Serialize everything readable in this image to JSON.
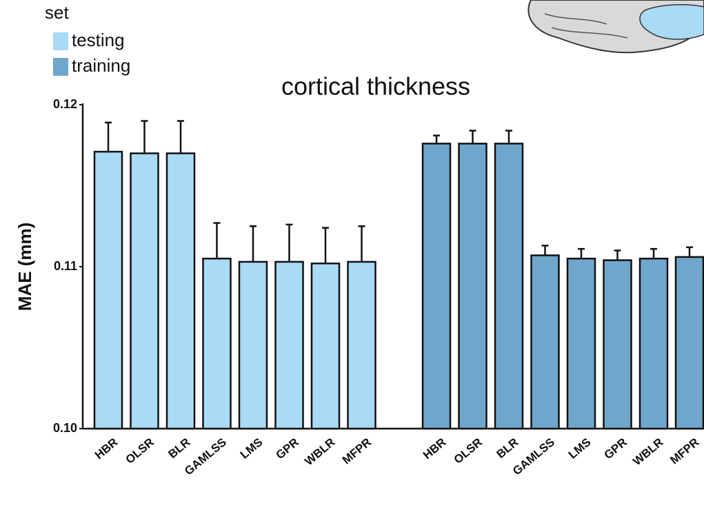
{
  "chart_data": {
    "type": "bar",
    "title": "cortical thickness",
    "y_label": "MAE (mm)",
    "legend_title": "set",
    "categories": [
      "HBR",
      "OLSR",
      "BLR",
      "GAMLSS",
      "LMS",
      "GPR",
      "WBLR",
      "MFPR"
    ],
    "series": [
      {
        "name": "testing",
        "color": "#a9daf6",
        "values": [
          0.1171,
          0.117,
          0.117,
          0.1105,
          0.1103,
          0.1103,
          0.1102,
          0.1103
        ],
        "errors": [
          0.0018,
          0.002,
          0.002,
          0.0022,
          0.0022,
          0.0023,
          0.0022,
          0.0022
        ]
      },
      {
        "name": "training",
        "color": "#6fa6cc",
        "values": [
          0.1176,
          0.1176,
          0.1176,
          0.1107,
          0.1105,
          0.1104,
          0.1105,
          0.1106
        ],
        "errors": [
          0.0005,
          0.0008,
          0.0008,
          0.0006,
          0.0006,
          0.0006,
          0.0006,
          0.0006
        ]
      }
    ],
    "ylim": [
      0.1,
      0.12
    ],
    "yticks": [
      {
        "value": 0.1,
        "label": "0.10"
      },
      0.11,
      0.12
    ]
  }
}
